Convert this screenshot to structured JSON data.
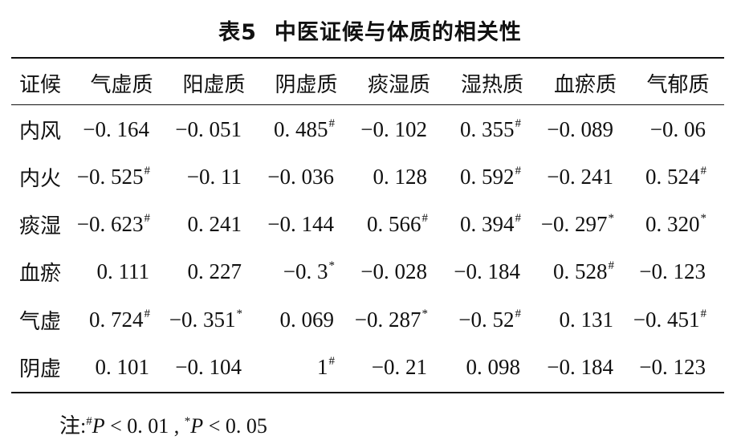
{
  "table": {
    "label": "表5",
    "caption": "中医证候与体质的相关性",
    "columns": [
      "证候",
      "气虚质",
      "阳虚质",
      "阴虚质",
      "痰湿质",
      "湿热质",
      "血瘀质",
      "气郁质"
    ],
    "rows": [
      {
        "label": "内风",
        "cells": [
          {
            "value": "−0. 164",
            "mark": ""
          },
          {
            "value": "−0. 051",
            "mark": ""
          },
          {
            "value": "0. 485",
            "mark": "#"
          },
          {
            "value": "−0. 102",
            "mark": ""
          },
          {
            "value": "0. 355",
            "mark": "#"
          },
          {
            "value": "−0. 089",
            "mark": ""
          },
          {
            "value": "−0. 06",
            "mark": ""
          }
        ]
      },
      {
        "label": "内火",
        "cells": [
          {
            "value": "−0. 525",
            "mark": "#"
          },
          {
            "value": "−0. 11",
            "mark": ""
          },
          {
            "value": "−0. 036",
            "mark": ""
          },
          {
            "value": "0. 128",
            "mark": ""
          },
          {
            "value": "0. 592",
            "mark": "#"
          },
          {
            "value": "−0. 241",
            "mark": ""
          },
          {
            "value": "0. 524",
            "mark": "#"
          }
        ]
      },
      {
        "label": "痰湿",
        "cells": [
          {
            "value": "−0. 623",
            "mark": "#"
          },
          {
            "value": "0. 241",
            "mark": ""
          },
          {
            "value": "−0. 144",
            "mark": ""
          },
          {
            "value": "0. 566",
            "mark": "#"
          },
          {
            "value": "0. 394",
            "mark": "#"
          },
          {
            "value": "−0. 297",
            "mark": "*"
          },
          {
            "value": "0. 320",
            "mark": "*"
          }
        ]
      },
      {
        "label": "血瘀",
        "cells": [
          {
            "value": "0. 111",
            "mark": ""
          },
          {
            "value": "0. 227",
            "mark": ""
          },
          {
            "value": "−0. 3",
            "mark": "*"
          },
          {
            "value": "−0. 028",
            "mark": ""
          },
          {
            "value": "−0. 184",
            "mark": ""
          },
          {
            "value": "0. 528",
            "mark": "#"
          },
          {
            "value": "−0. 123",
            "mark": ""
          }
        ]
      },
      {
        "label": "气虚",
        "cells": [
          {
            "value": "0. 724",
            "mark": "#"
          },
          {
            "value": "−0. 351",
            "mark": "*"
          },
          {
            "value": "0. 069",
            "mark": ""
          },
          {
            "value": "−0. 287",
            "mark": "*"
          },
          {
            "value": "−0. 52",
            "mark": "#"
          },
          {
            "value": "0. 131",
            "mark": ""
          },
          {
            "value": "−0. 451",
            "mark": "#"
          }
        ]
      },
      {
        "label": "阴虚",
        "cells": [
          {
            "value": "0. 101",
            "mark": ""
          },
          {
            "value": "−0. 104",
            "mark": ""
          },
          {
            "value": "1",
            "mark": "#"
          },
          {
            "value": "−0. 21",
            "mark": ""
          },
          {
            "value": "0. 098",
            "mark": ""
          },
          {
            "value": "−0. 184",
            "mark": ""
          },
          {
            "value": "−0. 123",
            "mark": ""
          }
        ]
      }
    ]
  },
  "note": {
    "prefix": "注:",
    "sig1_mark": "#",
    "sig1_var": "P",
    "sig1_cond": " < 0. 01 , ",
    "sig2_mark": "*",
    "sig2_var": "P",
    "sig2_cond": " < 0. 05"
  }
}
